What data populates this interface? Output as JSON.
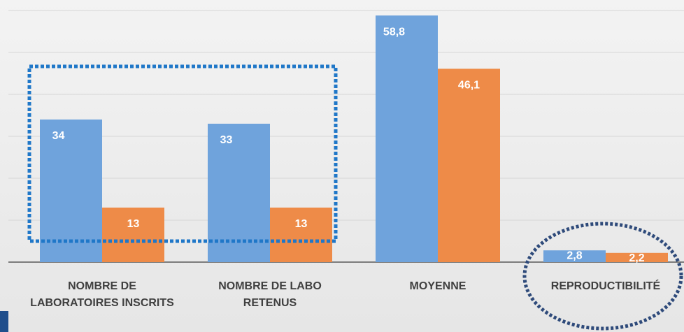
{
  "chart_data": {
    "type": "bar",
    "categories": [
      "NOMBRE DE LABORATOIRES INSCRITS",
      "NOMBRE DE LABO RETENUS",
      "MOYENNE",
      "REPRODUCTIBILITÉ"
    ],
    "series": [
      {
        "color": "#6fa3dc",
        "values": [
          34,
          33,
          58.8,
          2.8
        ],
        "value_labels": [
          "34",
          "33",
          "58,8",
          "2,8"
        ]
      },
      {
        "color": "#ee8b48",
        "values": [
          13,
          13,
          46.1,
          2.2
        ],
        "value_labels": [
          "13",
          "13",
          "46,1",
          "2,2"
        ]
      }
    ],
    "ylim": [
      0,
      60
    ],
    "yticks": [
      0,
      10,
      20,
      30,
      40,
      50,
      60
    ],
    "grid": true
  }
}
